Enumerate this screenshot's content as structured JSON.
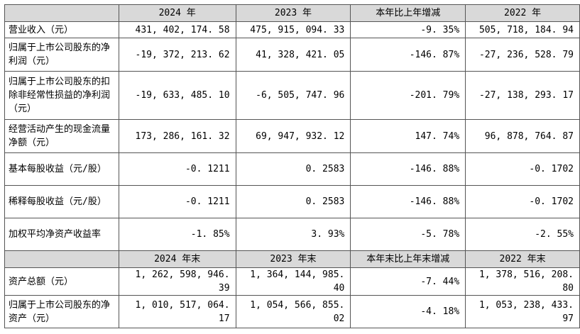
{
  "header1": [
    "",
    "2024 年",
    "2023 年",
    "本年比上年增减",
    "2022 年"
  ],
  "rows1": [
    {
      "label": "营业收入（元）",
      "values": [
        "431, 402, 174. 58",
        "475, 915, 094. 33",
        "-9. 35%",
        "505, 718, 184. 94"
      ]
    },
    {
      "label": "归属于上市公司股东的净利润（元）",
      "values": [
        "-19, 372, 213. 62",
        "41, 328, 421. 05",
        "-146. 87%",
        "-27, 236, 528. 79"
      ]
    },
    {
      "label": "归属于上市公司股东的扣除非经常性损益的净利润（元）",
      "values": [
        "-19, 633, 485. 10",
        "-6, 505, 747. 96",
        "-201. 79%",
        "-27, 138, 293. 17"
      ]
    },
    {
      "label": "经营活动产生的现金流量净额（元）",
      "values": [
        "173, 286, 161. 32",
        "69, 947, 932. 12",
        "147. 74%",
        "96, 878, 764. 87"
      ]
    },
    {
      "label": "基本每股收益（元/股）",
      "values": [
        "-0. 1211",
        "0. 2583",
        "-146. 88%",
        "-0. 1702"
      ]
    },
    {
      "label": "稀释每股收益（元/股）",
      "values": [
        "-0. 1211",
        "0. 2583",
        "-146. 88%",
        "-0. 1702"
      ]
    },
    {
      "label": "加权平均净资产收益率",
      "values": [
        "-1. 85%",
        "3. 93%",
        "-5. 78%",
        "-2. 55%"
      ]
    }
  ],
  "header2": [
    "",
    "2024 年末",
    "2023 年末",
    "本年末比上年末增减",
    "2022 年末"
  ],
  "rows2": [
    {
      "label": "资产总额（元）",
      "values": [
        "1, 262, 598, 946. 39",
        "1, 364, 144, 985. 40",
        "-7. 44%",
        "1, 378, 516, 208. 80"
      ]
    },
    {
      "label": "归属于上市公司股东的净资产（元）",
      "values": [
        "1, 010, 517, 064. 17",
        "1, 054, 566, 855. 02",
        "-4. 18%",
        "1, 053, 238, 433. 97"
      ]
    }
  ]
}
